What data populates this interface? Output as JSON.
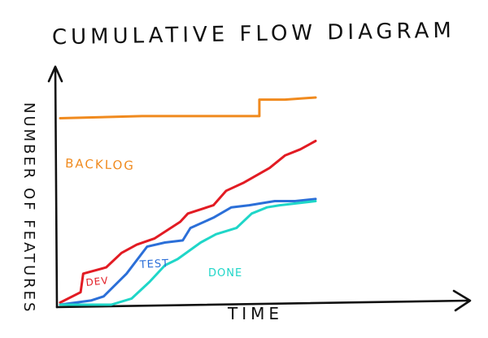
{
  "chart_data": {
    "type": "area",
    "title": "CUMULATIVE FLOW DIAGRAM",
    "xlabel": "TIME",
    "ylabel": "NUMBER OF FEATURES",
    "grid": false,
    "legend": "inline labels",
    "xlim": [
      0,
      1
    ],
    "ylim": [
      0,
      1
    ],
    "series": [
      {
        "name": "BACKLOG",
        "color": "#f08a1e",
        "points": [
          [
            0.0,
            0.9
          ],
          [
            0.32,
            0.91
          ],
          [
            0.78,
            0.91
          ],
          [
            0.78,
            0.99
          ],
          [
            0.88,
            0.99
          ],
          [
            1.0,
            1.0
          ]
        ]
      },
      {
        "name": "DEV",
        "color": "#e21b23",
        "points": [
          [
            0.0,
            0.01
          ],
          [
            0.08,
            0.06
          ],
          [
            0.09,
            0.15
          ],
          [
            0.18,
            0.18
          ],
          [
            0.24,
            0.25
          ],
          [
            0.3,
            0.29
          ],
          [
            0.37,
            0.32
          ],
          [
            0.47,
            0.4
          ],
          [
            0.5,
            0.44
          ],
          [
            0.6,
            0.48
          ],
          [
            0.65,
            0.55
          ],
          [
            0.72,
            0.59
          ],
          [
            0.82,
            0.66
          ],
          [
            0.88,
            0.72
          ],
          [
            0.94,
            0.75
          ],
          [
            1.0,
            0.79
          ]
        ]
      },
      {
        "name": "TEST",
        "color": "#2b6fd8",
        "points": [
          [
            0.0,
            0.0
          ],
          [
            0.12,
            0.02
          ],
          [
            0.17,
            0.04
          ],
          [
            0.26,
            0.15
          ],
          [
            0.34,
            0.28
          ],
          [
            0.41,
            0.3
          ],
          [
            0.48,
            0.31
          ],
          [
            0.51,
            0.37
          ],
          [
            0.6,
            0.42
          ],
          [
            0.67,
            0.47
          ],
          [
            0.74,
            0.48
          ],
          [
            0.84,
            0.5
          ],
          [
            0.92,
            0.5
          ],
          [
            1.0,
            0.51
          ]
        ]
      },
      {
        "name": "DONE",
        "color": "#1fd6c8",
        "points": [
          [
            0.0,
            0.0
          ],
          [
            0.2,
            0.0
          ],
          [
            0.28,
            0.03
          ],
          [
            0.35,
            0.11
          ],
          [
            0.41,
            0.19
          ],
          [
            0.46,
            0.22
          ],
          [
            0.55,
            0.3
          ],
          [
            0.61,
            0.34
          ],
          [
            0.69,
            0.37
          ],
          [
            0.75,
            0.44
          ],
          [
            0.81,
            0.47
          ],
          [
            0.86,
            0.48
          ],
          [
            1.0,
            0.5
          ]
        ]
      }
    ]
  }
}
